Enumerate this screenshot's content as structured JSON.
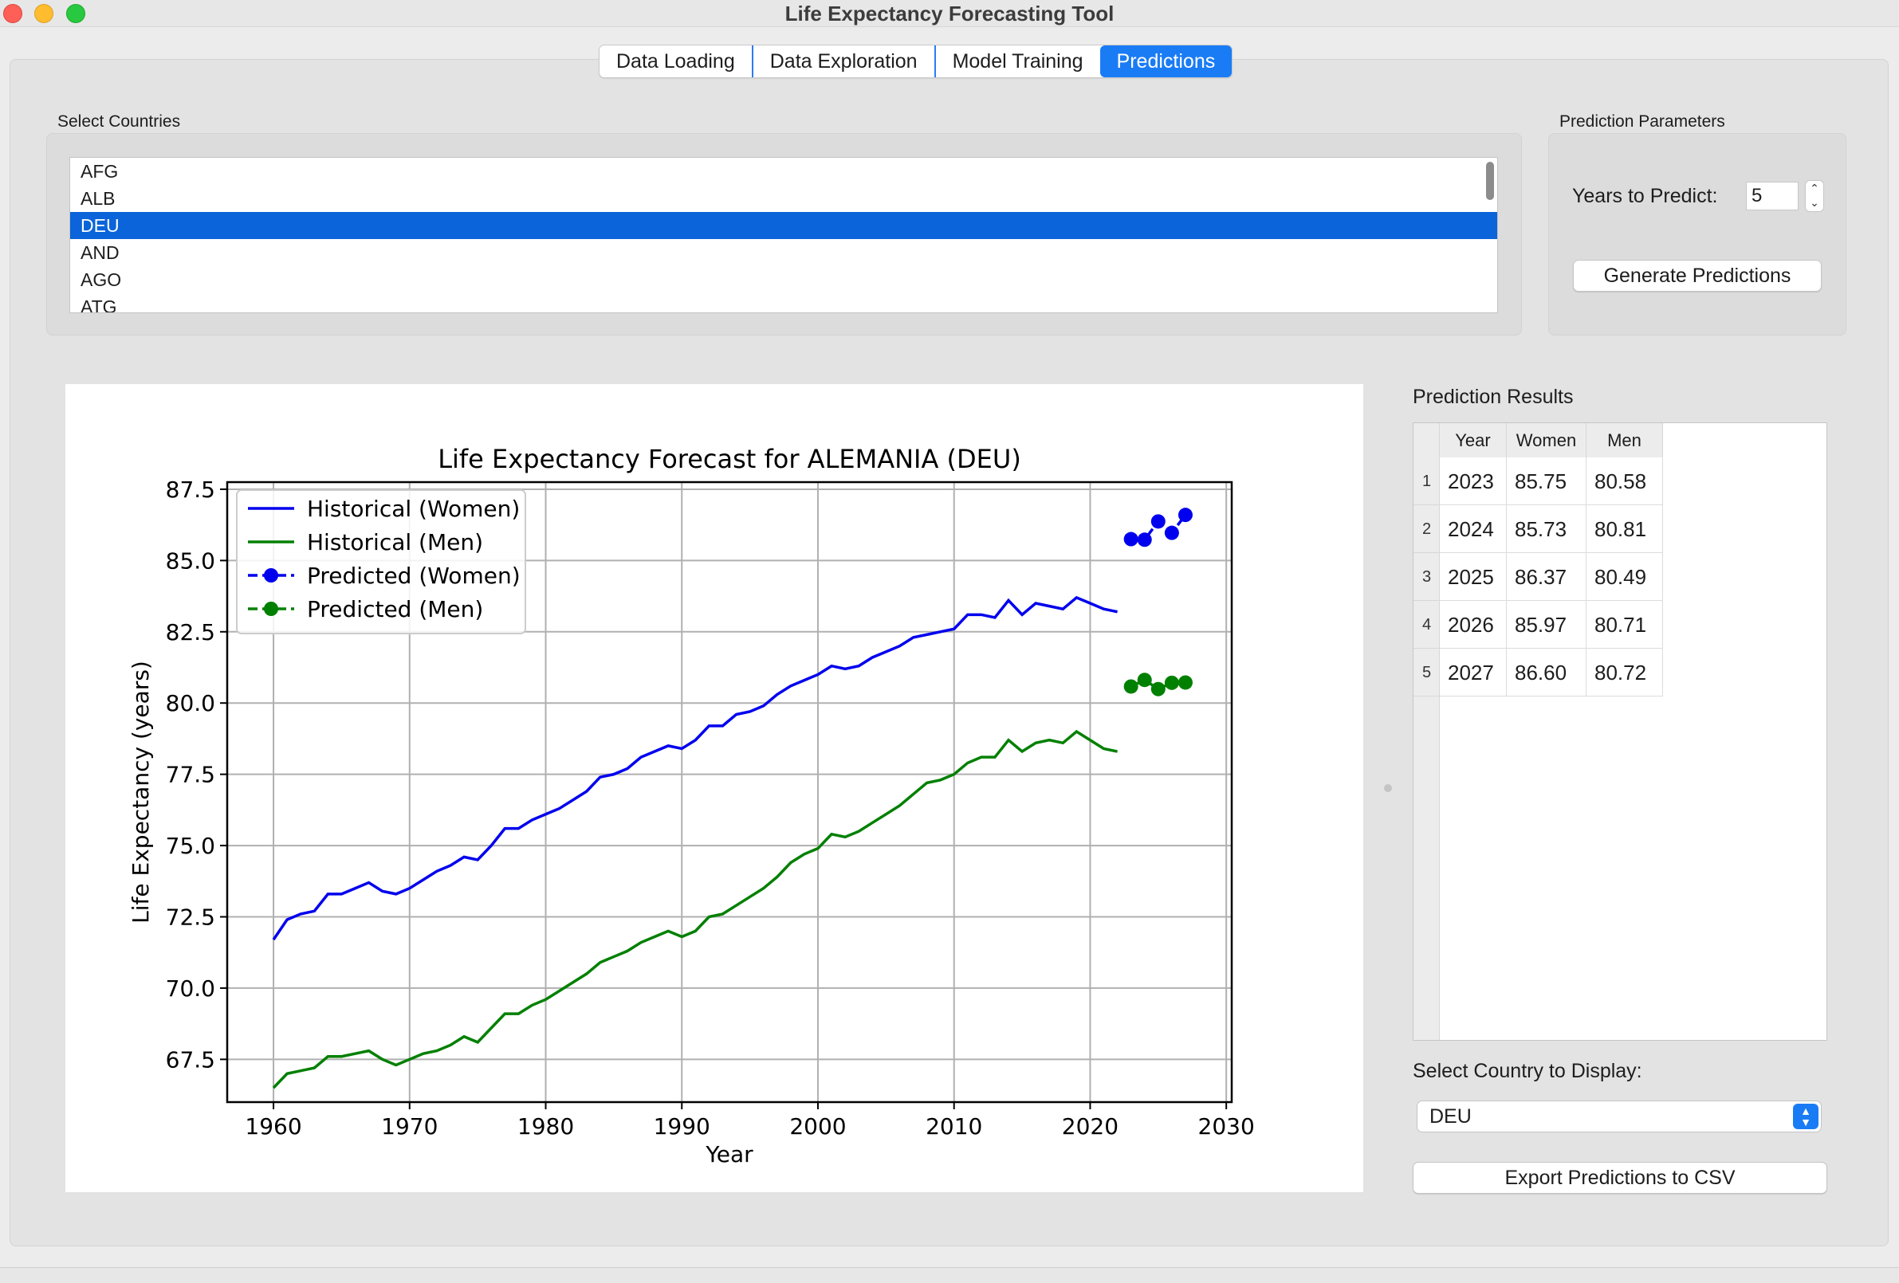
{
  "window": {
    "title": "Life Expectancy Forecasting Tool"
  },
  "tabs": [
    {
      "label": "Data Loading",
      "active": false
    },
    {
      "label": "Data Exploration",
      "active": false
    },
    {
      "label": "Model Training",
      "active": false
    },
    {
      "label": "Predictions",
      "active": true
    }
  ],
  "countries": {
    "group_label": "Select Countries",
    "items": [
      "AFG",
      "ALB",
      "DEU",
      "AND",
      "AGO",
      "ATG"
    ],
    "selected": "DEU"
  },
  "params": {
    "group_label": "Prediction Parameters",
    "years_label": "Years to Predict:",
    "years_value": "5",
    "generate_button": "Generate Predictions"
  },
  "results": {
    "label": "Prediction Results",
    "headers": [
      "Year",
      "Women",
      "Men"
    ],
    "rows": [
      [
        "2023",
        "85.75",
        "80.58"
      ],
      [
        "2024",
        "85.73",
        "80.81"
      ],
      [
        "2025",
        "86.37",
        "80.49"
      ],
      [
        "2026",
        "85.97",
        "80.71"
      ],
      [
        "2027",
        "86.60",
        "80.72"
      ]
    ]
  },
  "display": {
    "label": "Select Country to Display:",
    "value": "DEU",
    "export_button": "Export Predictions to CSV"
  },
  "colors": {
    "accent": "#1a7cf5",
    "women": "#0000ee",
    "men": "#008000"
  },
  "chart_data": {
    "type": "line",
    "title": "Life Expectancy Forecast for ALEMANIA (DEU)",
    "xlabel": "Year",
    "ylabel": "Life Expectancy (years)",
    "xlim": [
      1956.6,
      2030.4
    ],
    "ylim": [
      66.0,
      87.75
    ],
    "xticks": [
      1960,
      1970,
      1980,
      1990,
      2000,
      2010,
      2020,
      2030
    ],
    "yticks": [
      "67.5",
      "70.0",
      "72.5",
      "75.0",
      "77.5",
      "80.0",
      "82.5",
      "85.0",
      "87.5"
    ],
    "grid": true,
    "legend": "upper left",
    "series": [
      {
        "name": "Historical (Women)",
        "style": "line",
        "color": "#0000ee",
        "x": [
          1960,
          1961,
          1962,
          1963,
          1964,
          1965,
          1966,
          1967,
          1968,
          1969,
          1970,
          1971,
          1972,
          1973,
          1974,
          1975,
          1976,
          1977,
          1978,
          1979,
          1980,
          1981,
          1982,
          1983,
          1984,
          1985,
          1986,
          1987,
          1988,
          1989,
          1990,
          1991,
          1992,
          1993,
          1994,
          1995,
          1996,
          1997,
          1998,
          1999,
          2000,
          2001,
          2002,
          2003,
          2004,
          2005,
          2006,
          2007,
          2008,
          2009,
          2010,
          2011,
          2012,
          2013,
          2014,
          2015,
          2016,
          2017,
          2018,
          2019,
          2020,
          2021,
          2022
        ],
        "y": [
          71.7,
          72.4,
          72.6,
          72.7,
          73.3,
          73.3,
          73.5,
          73.7,
          73.4,
          73.3,
          73.5,
          73.8,
          74.1,
          74.3,
          74.6,
          74.5,
          75.0,
          75.6,
          75.6,
          75.9,
          76.1,
          76.3,
          76.6,
          76.9,
          77.4,
          77.5,
          77.7,
          78.1,
          78.3,
          78.5,
          78.4,
          78.7,
          79.2,
          79.2,
          79.6,
          79.7,
          79.9,
          80.3,
          80.6,
          80.8,
          81.0,
          81.3,
          81.2,
          81.3,
          81.6,
          81.8,
          82.0,
          82.3,
          82.4,
          82.5,
          82.6,
          83.1,
          83.1,
          83.0,
          83.6,
          83.1,
          83.5,
          83.4,
          83.3,
          83.7,
          83.5,
          83.3,
          83.2
        ]
      },
      {
        "name": "Historical (Men)",
        "style": "line",
        "color": "#008000",
        "x": [
          1960,
          1961,
          1962,
          1963,
          1964,
          1965,
          1966,
          1967,
          1968,
          1969,
          1970,
          1971,
          1972,
          1973,
          1974,
          1975,
          1976,
          1977,
          1978,
          1979,
          1980,
          1981,
          1982,
          1983,
          1984,
          1985,
          1986,
          1987,
          1988,
          1989,
          1990,
          1991,
          1992,
          1993,
          1994,
          1995,
          1996,
          1997,
          1998,
          1999,
          2000,
          2001,
          2002,
          2003,
          2004,
          2005,
          2006,
          2007,
          2008,
          2009,
          2010,
          2011,
          2012,
          2013,
          2014,
          2015,
          2016,
          2017,
          2018,
          2019,
          2020,
          2021,
          2022
        ],
        "y": [
          66.5,
          67.0,
          67.1,
          67.2,
          67.6,
          67.6,
          67.7,
          67.8,
          67.5,
          67.3,
          67.5,
          67.7,
          67.8,
          68.0,
          68.3,
          68.1,
          68.6,
          69.1,
          69.1,
          69.4,
          69.6,
          69.9,
          70.2,
          70.5,
          70.9,
          71.1,
          71.3,
          71.6,
          71.8,
          72.0,
          71.8,
          72.0,
          72.5,
          72.6,
          72.9,
          73.2,
          73.5,
          73.9,
          74.4,
          74.7,
          74.9,
          75.4,
          75.3,
          75.5,
          75.8,
          76.1,
          76.4,
          76.8,
          77.2,
          77.3,
          77.5,
          77.9,
          78.1,
          78.1,
          78.7,
          78.3,
          78.6,
          78.7,
          78.6,
          79.0,
          78.7,
          78.4,
          78.3
        ]
      },
      {
        "name": "Predicted (Women)",
        "style": "dashed-marker",
        "color": "#0000ee",
        "x": [
          2023,
          2024,
          2025,
          2026,
          2027
        ],
        "y": [
          85.75,
          85.73,
          86.37,
          85.97,
          86.6
        ]
      },
      {
        "name": "Predicted (Men)",
        "style": "dashed-marker",
        "color": "#008000",
        "x": [
          2023,
          2024,
          2025,
          2026,
          2027
        ],
        "y": [
          80.58,
          80.81,
          80.49,
          80.71,
          80.72
        ]
      }
    ]
  }
}
